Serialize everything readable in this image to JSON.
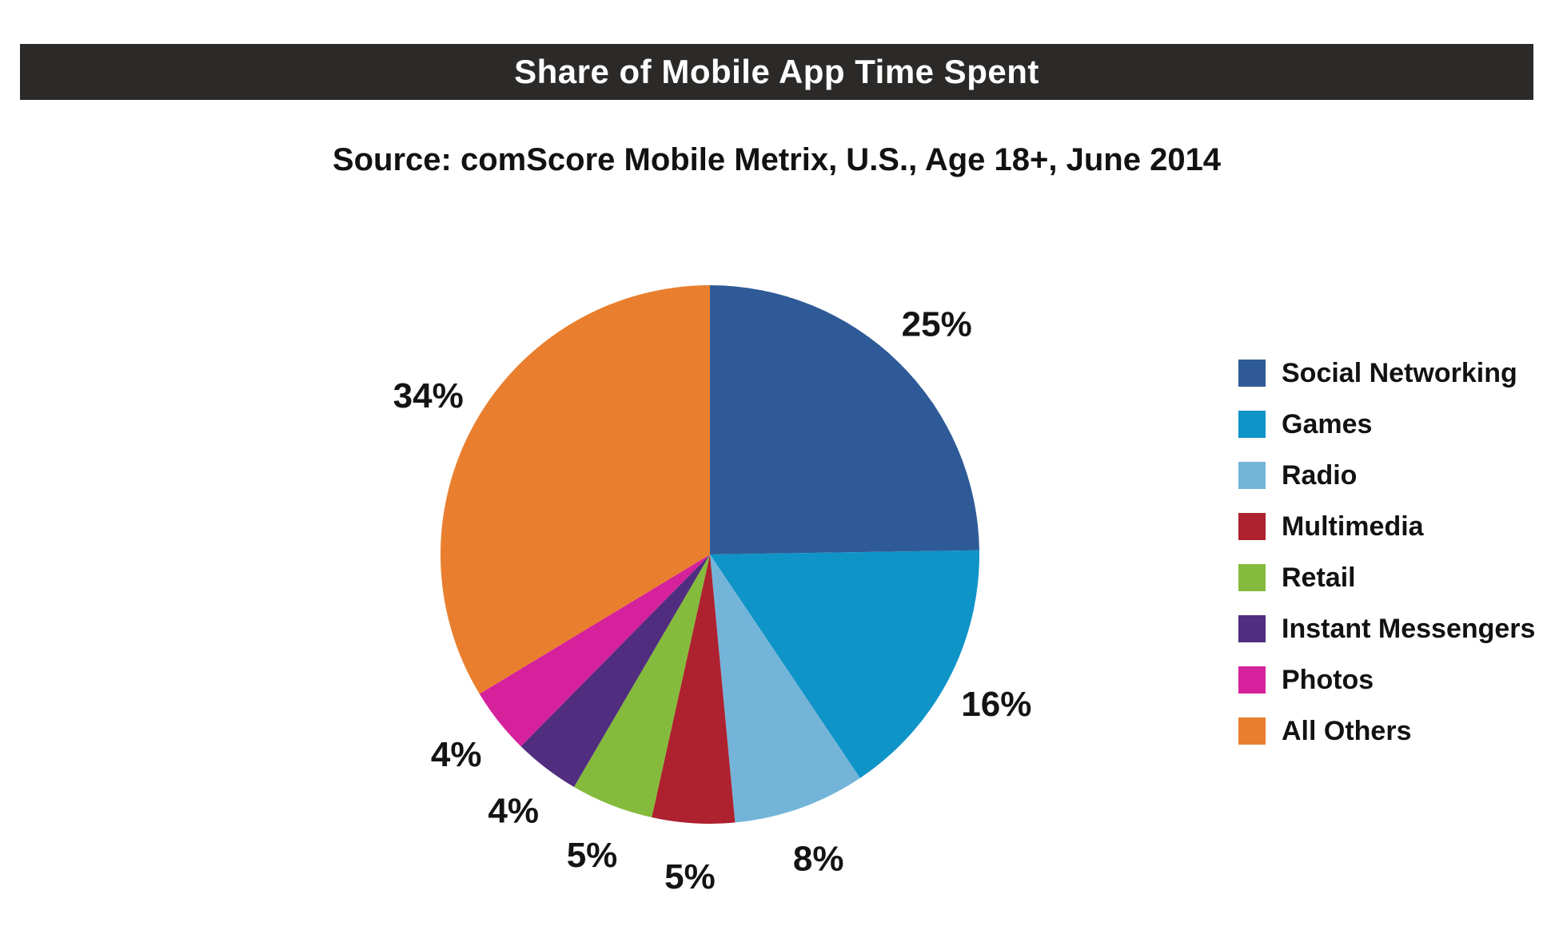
{
  "header": {
    "title": "Share of Mobile App Time Spent",
    "source": "Source: comScore Mobile Metrix, U.S., Age 18+, June 2014"
  },
  "colors": {
    "title_bar_background": "#2b2a28",
    "title_text": "#ffffff",
    "label_text": "#141414"
  },
  "chart_data": {
    "type": "pie",
    "title": "Share of Mobile App Time Spent",
    "source": "Source: comScore Mobile Metrix, U.S., Age 18+, June 2014",
    "categories": [
      "Social Networking",
      "Games",
      "Radio",
      "Multimedia",
      "Retail",
      "Instant Messengers",
      "Photos",
      "All Others"
    ],
    "values": [
      25,
      16,
      8,
      5,
      5,
      4,
      4,
      34
    ],
    "labels": [
      "25%",
      "16%",
      "8%",
      "5%",
      "5%",
      "4%",
      "4%",
      "34%"
    ],
    "colors": [
      "#2e5b97",
      "#0f94c8",
      "#74b4d8",
      "#ae212f",
      "#85bb3c",
      "#512d7f",
      "#d5219b",
      "#e97f2e"
    ],
    "start_angle_deg": 0,
    "direction": "clockwise",
    "legend_position": "right",
    "grid": false
  }
}
